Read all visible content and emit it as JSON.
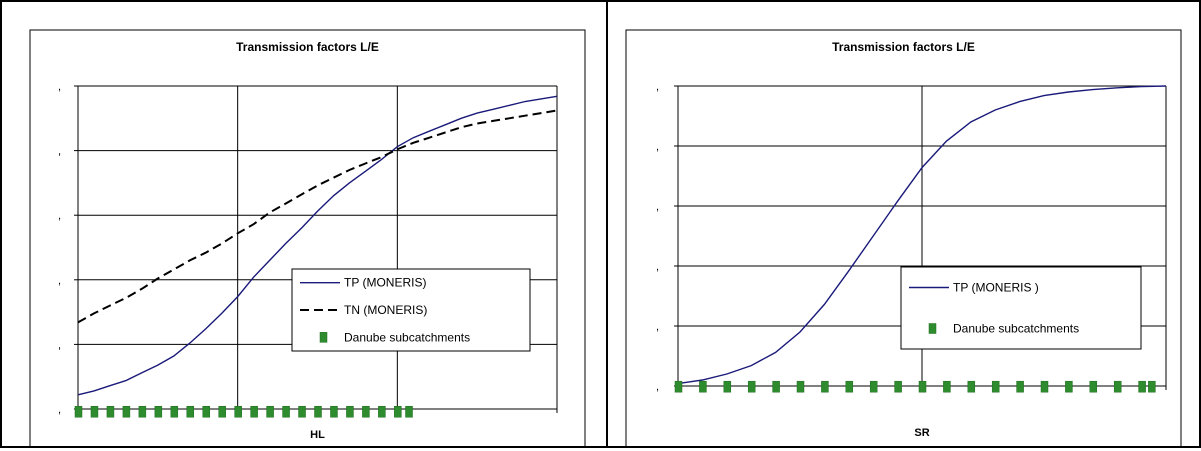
{
  "chart_data": [
    {
      "type": "line",
      "title": "Transmission factors L/E",
      "xlabel": "HL",
      "ylabel": "",
      "x_tick_labels": [
        "",
        "",
        "",
        ""
      ],
      "y_tick_labels": [
        ",",
        ",",
        ",",
        ",",
        ",",
        ","
      ],
      "xlim": [
        0,
        3
      ],
      "ylim": [
        0,
        5
      ],
      "grid": true,
      "legend_position": "center-right",
      "series": [
        {
          "name": "TP (MONERIS)",
          "color": "#1a1a7a",
          "style": "solid",
          "x": [
            0,
            0.1,
            0.2,
            0.3,
            0.4,
            0.5,
            0.6,
            0.7,
            0.8,
            0.9,
            1.0,
            1.1,
            1.2,
            1.3,
            1.4,
            1.5,
            1.6,
            1.7,
            1.8,
            1.9,
            2.0,
            2.1,
            2.2,
            2.3,
            2.4,
            2.5,
            2.6,
            2.7,
            2.8,
            2.9,
            3.0
          ],
          "values": [
            0.22,
            0.28,
            0.36,
            0.44,
            0.56,
            0.68,
            0.82,
            1.02,
            1.24,
            1.48,
            1.74,
            2.04,
            2.3,
            2.56,
            2.8,
            3.06,
            3.3,
            3.5,
            3.68,
            3.86,
            4.06,
            4.2,
            4.3,
            4.4,
            4.5,
            4.58,
            4.64,
            4.7,
            4.76,
            4.8,
            4.84
          ]
        },
        {
          "name": "TN (MONERIS)",
          "color": "#000000",
          "style": "dashed",
          "x": [
            0,
            0.1,
            0.2,
            0.3,
            0.4,
            0.5,
            0.6,
            0.7,
            0.8,
            0.9,
            1.0,
            1.1,
            1.2,
            1.3,
            1.4,
            1.5,
            1.6,
            1.7,
            1.8,
            1.9,
            2.0,
            2.1,
            2.2,
            2.3,
            2.4,
            2.5,
            2.6,
            2.7,
            2.8,
            2.9,
            3.0
          ],
          "values": [
            1.34,
            1.48,
            1.6,
            1.72,
            1.86,
            2.02,
            2.16,
            2.3,
            2.42,
            2.56,
            2.72,
            2.86,
            3.04,
            3.18,
            3.32,
            3.46,
            3.58,
            3.7,
            3.8,
            3.9,
            4.02,
            4.12,
            4.2,
            4.28,
            4.36,
            4.42,
            4.46,
            4.5,
            4.54,
            4.58,
            4.62
          ]
        },
        {
          "name": "Danube subcatchments",
          "color": "#2e8b2e",
          "style": "markers",
          "x": [
            0,
            0.1,
            0.2,
            0.3,
            0.4,
            0.5,
            0.6,
            0.7,
            0.8,
            0.9,
            1.0,
            1.1,
            1.2,
            1.3,
            1.4,
            1.5,
            1.6,
            1.7,
            1.8,
            1.9,
            2.0,
            2.07
          ],
          "values": [
            -0.05,
            -0.05,
            -0.05,
            -0.05,
            -0.05,
            -0.05,
            -0.05,
            -0.05,
            -0.05,
            -0.05,
            -0.05,
            -0.05,
            -0.05,
            -0.05,
            -0.05,
            -0.05,
            -0.05,
            -0.05,
            -0.05,
            -0.05,
            -0.05,
            -0.05
          ]
        }
      ]
    },
    {
      "type": "line",
      "title": "Transmission factors L/E",
      "xlabel": "SR",
      "ylabel": "",
      "x_tick_labels": [
        "",
        "",
        ""
      ],
      "y_tick_labels": [
        ",",
        ",",
        ",",
        ",",
        ",",
        ","
      ],
      "xlim": [
        0,
        2
      ],
      "ylim": [
        0,
        5
      ],
      "grid": true,
      "legend_position": "center-right",
      "series": [
        {
          "name": "TP (MONERIS )",
          "color": "#1a1a7a",
          "style": "solid",
          "x": [
            0,
            0.1,
            0.2,
            0.3,
            0.4,
            0.5,
            0.6,
            0.7,
            0.8,
            0.9,
            1.0,
            1.1,
            1.2,
            1.3,
            1.4,
            1.5,
            1.6,
            1.7,
            1.8,
            1.9,
            2.0
          ],
          "values": [
            0.04,
            0.1,
            0.2,
            0.34,
            0.56,
            0.9,
            1.36,
            1.92,
            2.5,
            3.08,
            3.64,
            4.08,
            4.4,
            4.6,
            4.74,
            4.84,
            4.9,
            4.94,
            4.97,
            4.99,
            5.0
          ]
        },
        {
          "name": "Danube subcatchments",
          "color": "#2e8b2e",
          "style": "markers",
          "x": [
            0,
            0.1,
            0.2,
            0.3,
            0.4,
            0.5,
            0.6,
            0.7,
            0.8,
            0.9,
            1.0,
            1.1,
            1.2,
            1.3,
            1.4,
            1.5,
            1.6,
            1.7,
            1.8,
            1.9,
            1.94
          ],
          "values": [
            -0.02,
            -0.02,
            -0.02,
            -0.02,
            -0.02,
            -0.02,
            -0.02,
            -0.02,
            -0.02,
            -0.02,
            -0.02,
            -0.02,
            -0.02,
            -0.02,
            -0.02,
            -0.02,
            -0.02,
            -0.02,
            -0.02,
            -0.02,
            -0.02
          ]
        }
      ]
    }
  ]
}
